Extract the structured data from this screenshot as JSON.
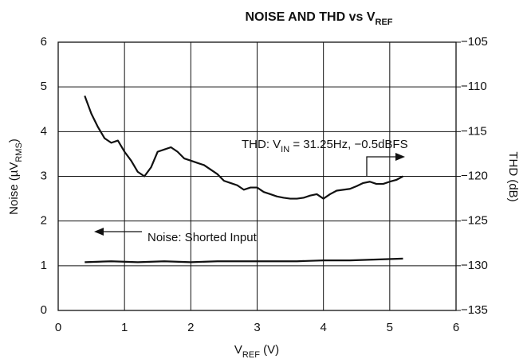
{
  "chart_data": {
    "type": "line",
    "title": [
      "NOISE AND THD vs V",
      "REF"
    ],
    "x_label": [
      "V",
      "REF",
      " (V)"
    ],
    "y_label": [
      "Noise (µV",
      "RMS",
      ")"
    ],
    "y2_label": "THD (dB)",
    "annotations": {
      "thd": [
        "THD: V",
        "IN",
        " = 31.25Hz, −0.5dBFS"
      ],
      "noise": "Noise: Shorted Input"
    },
    "xlim": [
      0,
      6
    ],
    "xticks": [
      0,
      1,
      2,
      3,
      4,
      5,
      6
    ],
    "ylim": [
      0,
      6
    ],
    "yticks": [
      0,
      1,
      2,
      3,
      4,
      5,
      6
    ],
    "y2lim": [
      -135,
      -105
    ],
    "y2ticks": [
      {
        "value": -135,
        "label": "−135"
      },
      {
        "value": -130,
        "label": "−130"
      },
      {
        "value": -125,
        "label": "−125"
      },
      {
        "value": -120,
        "label": "−120"
      },
      {
        "value": -115,
        "label": "−115"
      },
      {
        "value": -110,
        "label": "−110"
      },
      {
        "value": -105,
        "label": "−105"
      }
    ],
    "grid": true,
    "series": [
      {
        "name": "Noise",
        "color": "#111111",
        "x": [
          0.4,
          0.8,
          1.2,
          1.6,
          2.0,
          2.4,
          2.8,
          3.2,
          3.6,
          4.0,
          4.4,
          4.8,
          5.2
        ],
        "values": [
          1.08,
          1.1,
          1.08,
          1.1,
          1.08,
          1.1,
          1.1,
          1.1,
          1.1,
          1.12,
          1.12,
          1.14,
          1.16
        ]
      },
      {
        "name": "THD",
        "color": "#111111",
        "axis": "y2",
        "x": [
          0.4,
          0.5,
          0.6,
          0.7,
          0.8,
          0.9,
          1.0,
          1.1,
          1.2,
          1.3,
          1.4,
          1.5,
          1.6,
          1.7,
          1.8,
          1.9,
          2.0,
          2.1,
          2.2,
          2.3,
          2.4,
          2.5,
          2.6,
          2.7,
          2.8,
          2.9,
          3.0,
          3.1,
          3.2,
          3.3,
          3.4,
          3.5,
          3.6,
          3.7,
          3.8,
          3.9,
          4.0,
          4.1,
          4.2,
          4.3,
          4.4,
          4.5,
          4.6,
          4.7,
          4.8,
          4.9,
          5.0,
          5.1,
          5.2
        ],
        "values": [
          -111,
          -113,
          -114.5,
          -115.75,
          -116.25,
          -116,
          -117.25,
          -118.25,
          -119.5,
          -120,
          -119,
          -117.25,
          -117,
          -116.75,
          -117.25,
          -118,
          -118.25,
          -118.5,
          -118.75,
          -119.25,
          -119.75,
          -120.5,
          -120.75,
          -121,
          -121.5,
          -121.25,
          -121.25,
          -121.75,
          -122,
          -122.25,
          -122.4,
          -122.5,
          -122.5,
          -122.4,
          -122.15,
          -122,
          -122.5,
          -122,
          -121.6,
          -121.5,
          -121.4,
          -121.1,
          -120.75,
          -120.6,
          -120.85,
          -120.85,
          -120.6,
          -120.4,
          -120
        ]
      }
    ]
  }
}
